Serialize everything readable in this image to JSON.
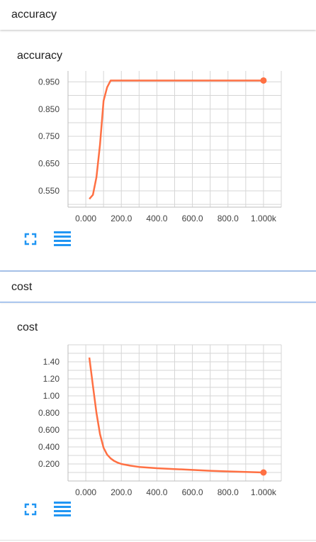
{
  "sections": [
    {
      "header": "accuracy",
      "card_title": "accuracy"
    },
    {
      "header": "cost",
      "card_title": "cost"
    }
  ],
  "colors": {
    "line": "#ff7043",
    "grid": "#d6d6d6",
    "icon": "#2196f3"
  },
  "icons": {
    "expand": "expand-icon",
    "data": "data-table-icon"
  },
  "chart_data": [
    {
      "type": "line",
      "title": "accuracy",
      "x_tick_labels": [
        "0.000",
        "200.0",
        "400.0",
        "600.0",
        "800.0",
        "1.000k"
      ],
      "y_tick_labels": [
        "0.550",
        "0.650",
        "0.750",
        "0.850",
        "0.950"
      ],
      "xlim": [
        -100,
        1100
      ],
      "ylim": [
        0.49,
        0.99
      ],
      "grid": true,
      "series": [
        {
          "x": [
            20,
            40,
            60,
            80,
            100,
            120,
            140,
            200,
            400,
            600,
            800,
            1000
          ],
          "y": [
            0.52,
            0.535,
            0.6,
            0.72,
            0.88,
            0.93,
            0.955,
            0.955,
            0.955,
            0.955,
            0.955,
            0.955
          ]
        }
      ]
    },
    {
      "type": "line",
      "title": "cost",
      "x_tick_labels": [
        "0.000",
        "200.0",
        "400.0",
        "600.0",
        "800.0",
        "1.000k"
      ],
      "y_tick_labels": [
        "0.200",
        "0.400",
        "0.600",
        "0.800",
        "1.00",
        "1.20",
        "1.40"
      ],
      "xlim": [
        -100,
        1100
      ],
      "ylim": [
        0.0,
        1.6
      ],
      "grid": true,
      "series": [
        {
          "x": [
            20,
            40,
            60,
            80,
            100,
            120,
            140,
            160,
            180,
            200,
            250,
            300,
            400,
            500,
            600,
            700,
            800,
            900,
            1000
          ],
          "y": [
            1.45,
            1.12,
            0.8,
            0.55,
            0.39,
            0.31,
            0.265,
            0.235,
            0.215,
            0.2,
            0.18,
            0.165,
            0.15,
            0.14,
            0.13,
            0.12,
            0.113,
            0.106,
            0.1
          ]
        }
      ]
    }
  ]
}
